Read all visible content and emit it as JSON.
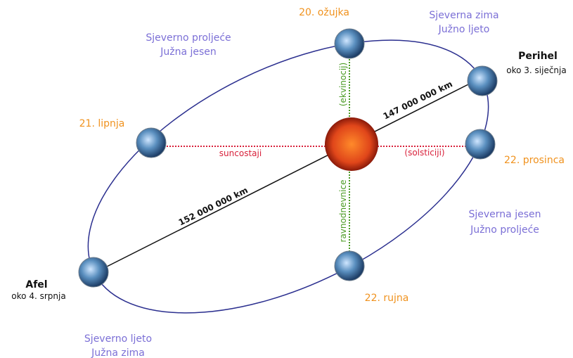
{
  "dates": {
    "march": "20. ožujka",
    "june": "21. lipnja",
    "september": "22. rujna",
    "december": "22. prosinca"
  },
  "seasons": {
    "top_right": [
      "Sjeverna zima",
      "Južno ljeto"
    ],
    "top_left": [
      "Sjeverno proljeće",
      "Južna jesen"
    ],
    "bottom_right": [
      "Sjeverna jesen",
      "Južno proljeće"
    ],
    "bottom_left": [
      "Sjeverno ljeto",
      "Južna zima"
    ]
  },
  "perihelion": {
    "title": "Perihel",
    "date": "oko 3. siječnja"
  },
  "aphelion": {
    "title": "Afel",
    "date": "oko 4. srpnja"
  },
  "solstices": {
    "label": "suncostaji",
    "alt": "(solsticiji)"
  },
  "equinoxes": {
    "label": "ravnodnevnice",
    "alt": "(ekvinocij)"
  },
  "distances": {
    "perihelion": "147 000 000 km",
    "aphelion": "152 000 000 km"
  }
}
